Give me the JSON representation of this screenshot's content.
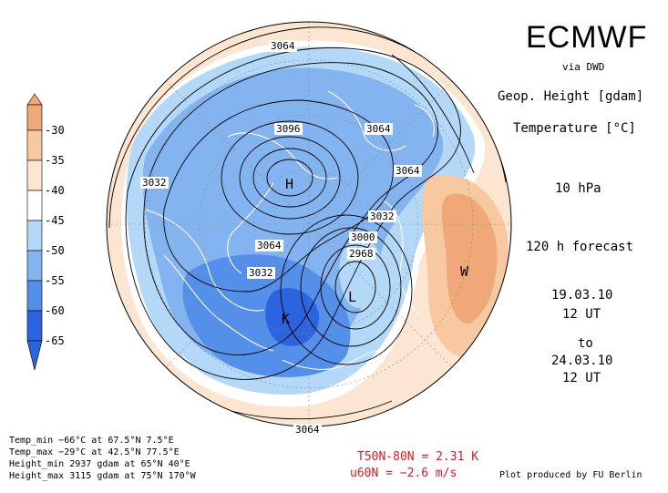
{
  "header": {
    "title": "ECMWF",
    "via": "via DWD",
    "variable1": "Geop. Height [gdam]",
    "variable2": "Temperature [°C]",
    "level": "10 hPa",
    "forecast": "120 h forecast",
    "init_date": "19.03.10",
    "init_time": "12 UT",
    "to": "to",
    "valid_date": "24.03.10",
    "valid_time": "12 UT"
  },
  "stats": {
    "temp_min": "Temp_min −66°C at 67.5°N 7.5°E",
    "temp_max": "Temp_max −29°C at 42.5°N 77.5°E",
    "height_min": "Height_min 2937 gdam at 65°N 40°E",
    "height_max": "Height_max 3115 gdam at 75°N 170°W"
  },
  "diagnostics": {
    "line1": "T50N-80N = 2.31 K",
    "line2": "u60N = −2.6 m/s",
    "color": "#e0181c"
  },
  "credit": "Plot produced by FU Berlin",
  "colorbar": {
    "labels": [
      "-30",
      "-35",
      "-40",
      "-45",
      "-50",
      "-55",
      "-60",
      "-65"
    ],
    "colors": [
      "#f0a878",
      "#f8c8a0",
      "#fce6d2",
      "#ffffff",
      "#b4d8f8",
      "#84b4f0",
      "#5490ea",
      "#2c64e0"
    ]
  },
  "contour_labels": [
    "3064",
    "3096",
    "3064",
    "3032",
    "3064",
    "3032",
    "3064",
    "3032",
    "3000",
    "2968",
    "3064"
  ],
  "centers": [
    "H",
    "L",
    "W",
    "K"
  ]
}
